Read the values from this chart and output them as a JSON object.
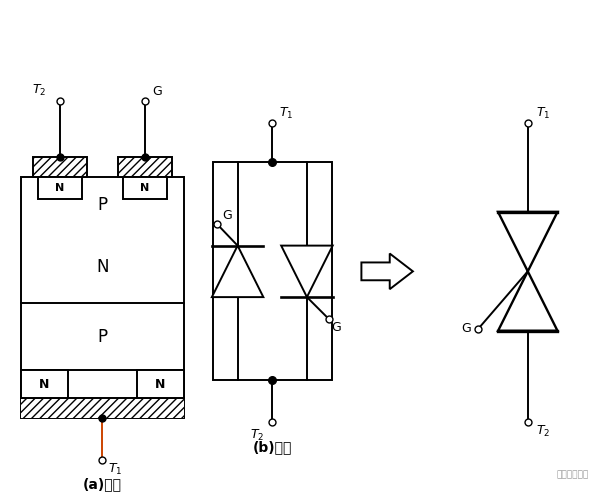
{
  "bg_color": "#ffffff",
  "label_a": "(a)结构",
  "label_b": "(b)电路",
  "watermark": "电子工程专辑",
  "line_color": "#000000",
  "font_size_label": 10
}
